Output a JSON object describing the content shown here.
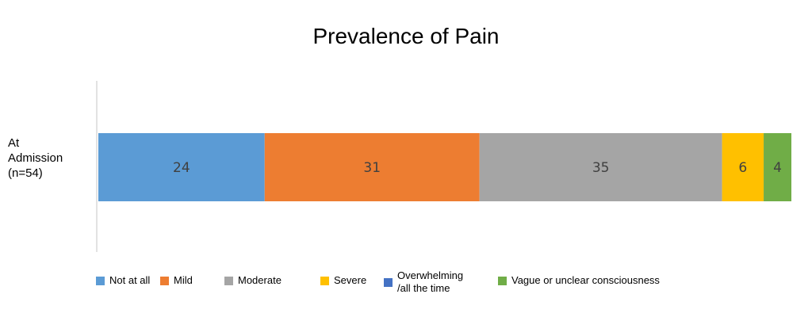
{
  "chart_data": {
    "type": "bar",
    "orientation": "horizontal",
    "stacked": true,
    "title": "Prevalence of Pain",
    "categories": [
      "At\nAdmission\n(n=54)"
    ],
    "series": [
      {
        "name": "Not at all",
        "values": [
          24
        ],
        "color": "#5B9BD5"
      },
      {
        "name": "Mild",
        "values": [
          31
        ],
        "color": "#ED7D31"
      },
      {
        "name": "Moderate",
        "values": [
          35
        ],
        "color": "#A5A5A5"
      },
      {
        "name": "Severe",
        "values": [
          6
        ],
        "color": "#FFC000"
      },
      {
        "name": "Overwhelming\n/all the time",
        "values": [
          0
        ],
        "color": "#4472C4"
      },
      {
        "name": "Vague or unclear consciousness",
        "values": [
          4
        ],
        "color": "#70AD47"
      }
    ],
    "xlim": [
      0,
      100
    ],
    "grid": false,
    "legend_position": "bottom"
  }
}
